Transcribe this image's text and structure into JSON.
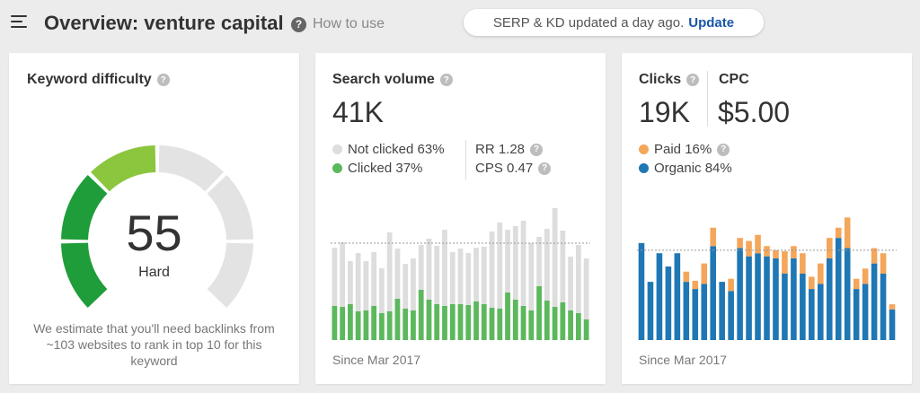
{
  "header": {
    "title": "Overview: venture capital",
    "help_icon": "?",
    "help_label": "How to use",
    "status_text": "SERP & KD updated a day ago.",
    "update_label": "Update"
  },
  "keyword_difficulty": {
    "title": "Keyword difficulty",
    "value": "55",
    "level": "Hard",
    "note": "We estimate that you'll need backlinks from ~103 websites to rank in top 10 for this keyword",
    "gauge_fraction": 0.55,
    "colors": {
      "green": "#1f9d3a",
      "lightgreen": "#8cc63f",
      "yellow": "#d9c400",
      "empty": "#e3e3e3"
    }
  },
  "search_volume": {
    "title": "Search volume",
    "value": "41K",
    "legend": [
      {
        "label": "Not clicked 63%",
        "color": "#dddddd"
      },
      {
        "label": "Clicked 37%",
        "color": "#5cb85c"
      }
    ],
    "metrics": [
      {
        "label": "RR 1.28"
      },
      {
        "label": "CPS 0.47"
      }
    ],
    "since": "Since Mar 2017",
    "chart_data": {
      "type": "bar",
      "stacked": true,
      "series": [
        {
          "name": "Clicked",
          "color": "#5cb85c",
          "values": [
            38,
            37,
            40,
            32,
            33,
            38,
            30,
            32,
            46,
            35,
            33,
            56,
            45,
            40,
            38,
            40,
            40,
            39,
            43,
            40,
            36,
            35,
            53,
            45,
            38,
            33,
            60,
            44,
            37,
            42,
            33,
            30,
            23
          ]
        },
        {
          "name": "Not clicked",
          "color": "#dddddd",
          "values": [
            65,
            72,
            48,
            65,
            55,
            60,
            50,
            88,
            56,
            50,
            58,
            50,
            68,
            65,
            85,
            58,
            62,
            58,
            60,
            64,
            85,
            96,
            70,
            82,
            95,
            75,
            55,
            80,
            110,
            80,
            60,
            76,
            68
          ]
        }
      ]
    }
  },
  "clicks": {
    "title": "Clicks",
    "value": "19K",
    "cpc_title": "CPC",
    "cpc_value": "$5.00",
    "legend": [
      {
        "label": "Paid 16%",
        "color": "#f4a65b"
      },
      {
        "label": "Organic 84%",
        "color": "#1f77b4"
      }
    ],
    "since": "Since Mar 2017",
    "chart_data": {
      "type": "bar",
      "stacked": true,
      "series": [
        {
          "name": "Organic",
          "color": "#1f77b4",
          "values": [
            95,
            57,
            85,
            72,
            85,
            57,
            50,
            55,
            92,
            57,
            48,
            90,
            82,
            85,
            82,
            80,
            65,
            80,
            65,
            50,
            55,
            80,
            100,
            90,
            50,
            55,
            75,
            65,
            30
          ]
        },
        {
          "name": "Paid",
          "color": "#f4a65b",
          "values": [
            0,
            0,
            0,
            0,
            0,
            10,
            8,
            20,
            18,
            0,
            12,
            10,
            15,
            18,
            10,
            8,
            22,
            12,
            20,
            12,
            20,
            20,
            10,
            30,
            10,
            15,
            15,
            20,
            5
          ]
        }
      ]
    }
  }
}
